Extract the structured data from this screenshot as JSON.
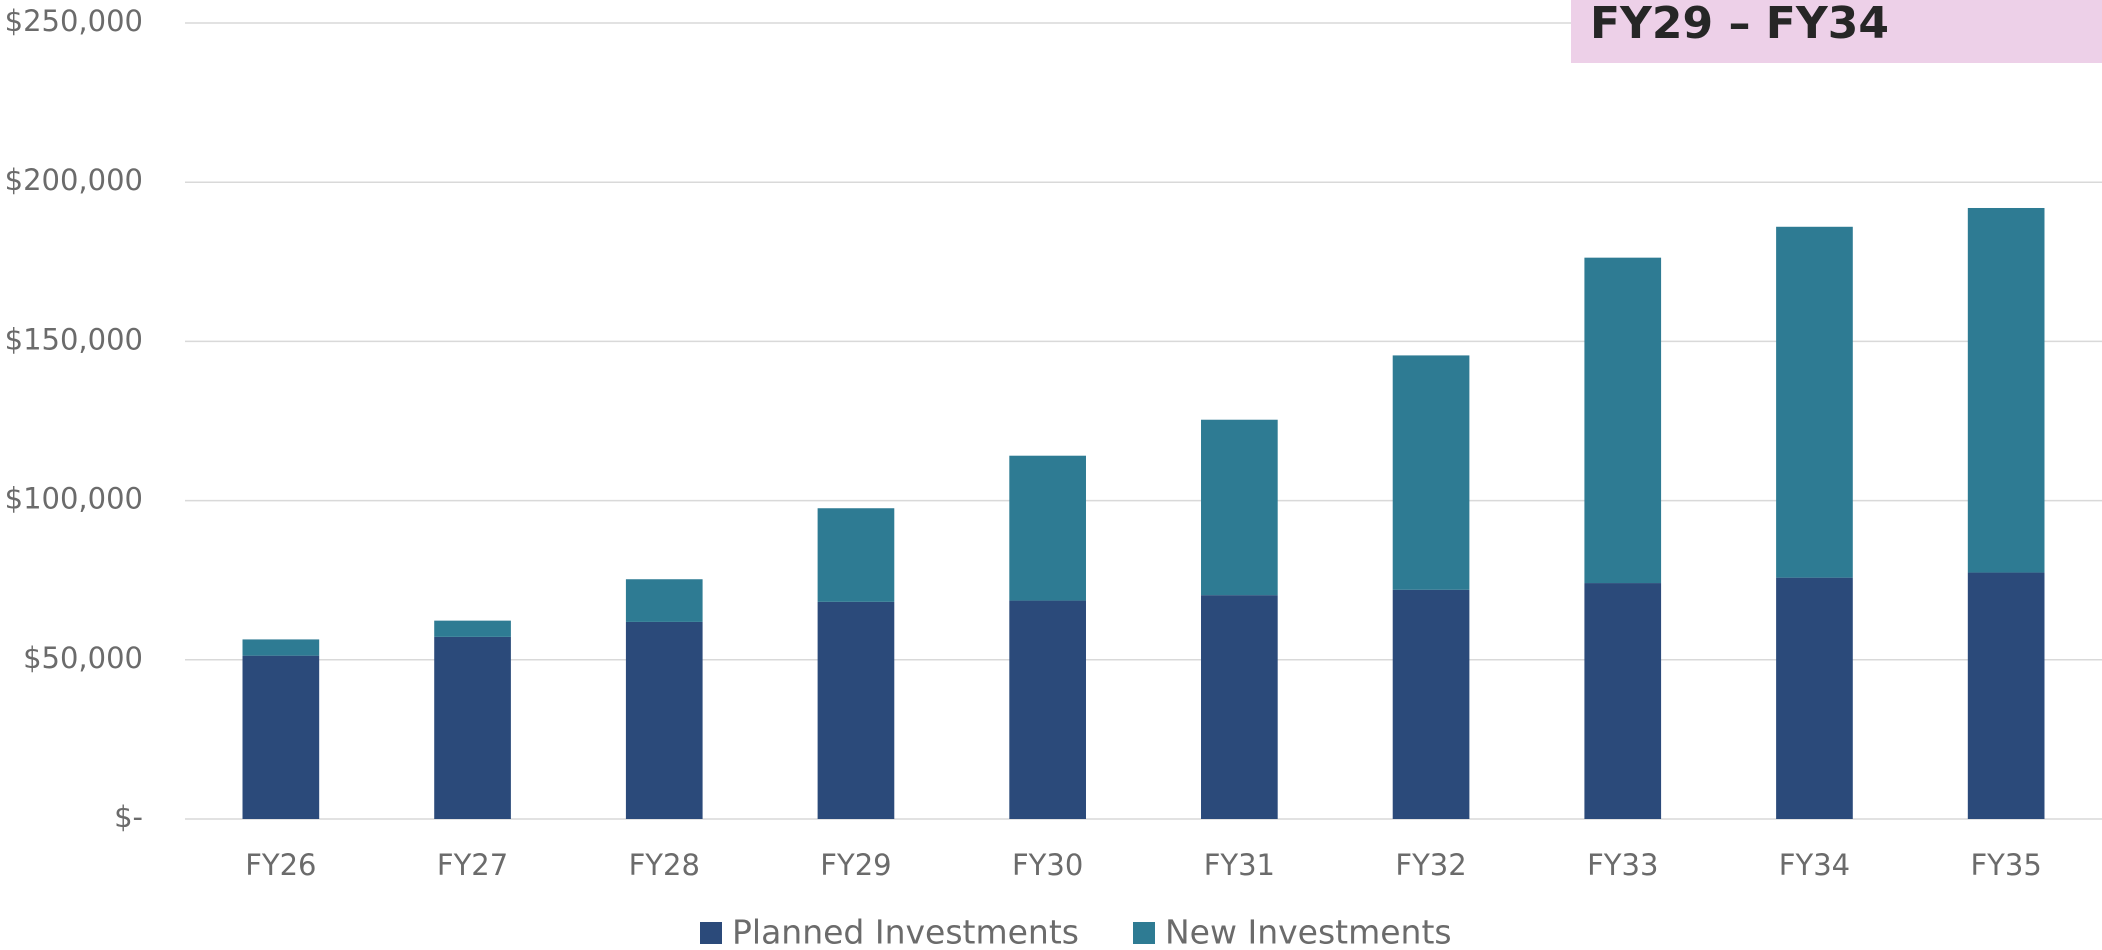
{
  "chart_data": {
    "type": "stacked_bar",
    "annotation": "FY29 – FY34",
    "categories": [
      "FY26",
      "FY27",
      "FY28",
      "FY29",
      "FY30",
      "FY31",
      "FY32",
      "FY33",
      "FY34",
      "FY35"
    ],
    "series": [
      {
        "name": "Planned Investments",
        "color": "#2b4a7a",
        "values": [
          51300,
          57200,
          61900,
          68200,
          68600,
          70300,
          72000,
          74100,
          75800,
          77400
        ]
      },
      {
        "name": "New Investments",
        "color": "#2e7b93",
        "values": [
          5100,
          5100,
          13400,
          29400,
          45500,
          55100,
          73600,
          102200,
          110200,
          114500
        ]
      }
    ],
    "ylim": [
      0,
      250000
    ],
    "yticks": [
      {
        "value": 0,
        "label": "$-"
      },
      {
        "value": 50000,
        "label": "$50,000"
      },
      {
        "value": 100000,
        "label": "$100,000"
      },
      {
        "value": 150000,
        "label": "$150,000"
      },
      {
        "value": 200000,
        "label": "$200,000"
      },
      {
        "value": 250000,
        "label": "$250,000"
      }
    ],
    "grid": true,
    "legend": "bottom",
    "annotation_color": "#edd0e8"
  }
}
